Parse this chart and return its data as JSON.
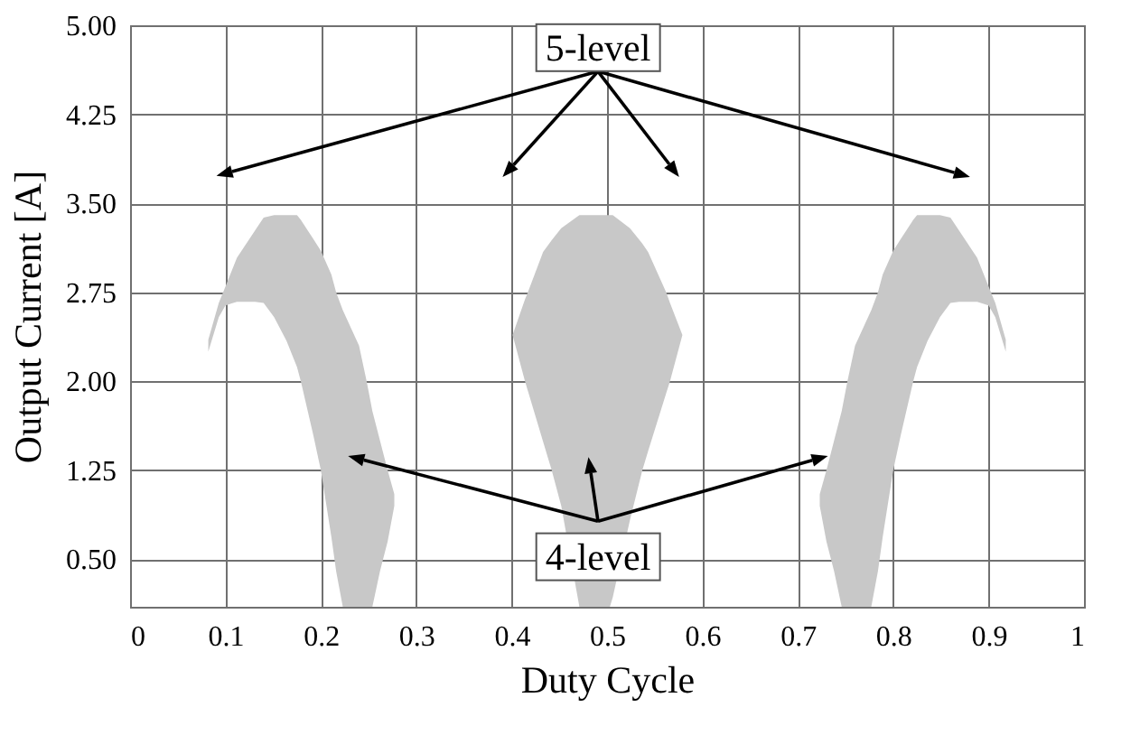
{
  "chart_data": {
    "type": "area",
    "xlabel": "Duty Cycle",
    "ylabel": "Output Current [A]",
    "xlim": [
      0,
      1
    ],
    "xticks": [
      0,
      0.1,
      0.2,
      0.3,
      0.4,
      0.5,
      0.6,
      0.7,
      0.8,
      0.9,
      1
    ],
    "ylim": [
      0.1,
      5
    ],
    "yticks": [
      {
        "value": 0.5,
        "label": "0.50"
      },
      {
        "value": 1.25,
        "label": "1.25"
      },
      {
        "value": 2,
        "label": "2.00"
      },
      {
        "value": 2.75,
        "label": "2.75"
      },
      {
        "value": 3.5,
        "label": "3.50"
      },
      {
        "value": 4.25,
        "label": "4.25"
      },
      {
        "value": 5,
        "label": "5.00"
      }
    ],
    "grid": true,
    "annotations": [
      "5-level",
      "4-level"
    ],
    "series": [
      {
        "color": "#c8c8c8",
        "x": [
          0.082,
          0.093,
          0.1,
          0.112,
          0.131,
          0.14,
          0.151,
          0.164,
          0.175,
          0.179,
          0.192,
          0.2,
          0.211,
          0.216,
          0.223,
          0.24,
          0.248,
          0.254,
          0.262,
          0.27,
          0.277
        ],
        "values": [
          null,
          null,
          null,
          null,
          null,
          null,
          null,
          null,
          null,
          null,
          null,
          null,
          null,
          null,
          null,
          null,
          null,
          null,
          null,
          null,
          null
        ],
        "lower": [
          2.25,
          2.54,
          2.64,
          2.67,
          2.67,
          2.66,
          2.54,
          2.34,
          2.12,
          2.0,
          1.55,
          1.25,
          0.69,
          0.4,
          0.1,
          0.1,
          0.1,
          0.1,
          0.4,
          0.65,
          0.95
        ],
        "upper": [
          2.35,
          2.66,
          2.8,
          3.04,
          3.27,
          3.38,
          3.4,
          3.4,
          3.4,
          3.36,
          3.2,
          3.1,
          2.9,
          2.75,
          2.6,
          2.3,
          2.0,
          1.75,
          1.5,
          1.25,
          1.05
        ]
      },
      {
        "color": "#c8c8c8",
        "x": [
          0.401,
          0.414,
          0.417,
          0.433,
          0.442,
          0.452,
          0.471,
          0.503,
          0.506,
          0.524,
          0.537,
          0.543,
          0.562,
          0.566,
          0.579
        ],
        "values": [
          null,
          null,
          null,
          null,
          null,
          null,
          null,
          null,
          null,
          null,
          null,
          null,
          null,
          null,
          null
        ],
        "lower": [
          2.39,
          2.0,
          1.92,
          1.49,
          1.25,
          0.95,
          0.1,
          0.1,
          0.18,
          0.83,
          1.25,
          1.41,
          1.9,
          2.0,
          2.39
        ],
        "upper": [
          2.39,
          2.69,
          2.75,
          3.09,
          3.19,
          3.29,
          3.4,
          3.4,
          3.4,
          3.29,
          3.16,
          3.09,
          2.75,
          2.66,
          2.39
        ]
      },
      {
        "color": "#c8c8c8",
        "x": [
          0.723,
          0.73,
          0.738,
          0.746,
          0.752,
          0.76,
          0.777,
          0.784,
          0.789,
          0.8,
          0.808,
          0.821,
          0.825,
          0.836,
          0.849,
          0.86,
          0.869,
          0.888,
          0.9,
          0.907,
          0.918
        ],
        "values": [
          null,
          null,
          null,
          null,
          null,
          null,
          null,
          null,
          null,
          null,
          null,
          null,
          null,
          null,
          null,
          null,
          null,
          null,
          null,
          null,
          null
        ],
        "lower": [
          0.95,
          0.65,
          0.4,
          0.1,
          0.1,
          0.1,
          0.1,
          0.4,
          0.69,
          1.25,
          1.55,
          2.0,
          2.12,
          2.34,
          2.54,
          2.66,
          2.67,
          2.67,
          2.64,
          2.54,
          2.25
        ],
        "upper": [
          1.05,
          1.25,
          1.5,
          1.75,
          2.0,
          2.3,
          2.6,
          2.75,
          2.9,
          3.1,
          3.2,
          3.36,
          3.4,
          3.4,
          3.4,
          3.38,
          3.27,
          3.04,
          2.8,
          2.66,
          2.35
        ]
      }
    ]
  }
}
